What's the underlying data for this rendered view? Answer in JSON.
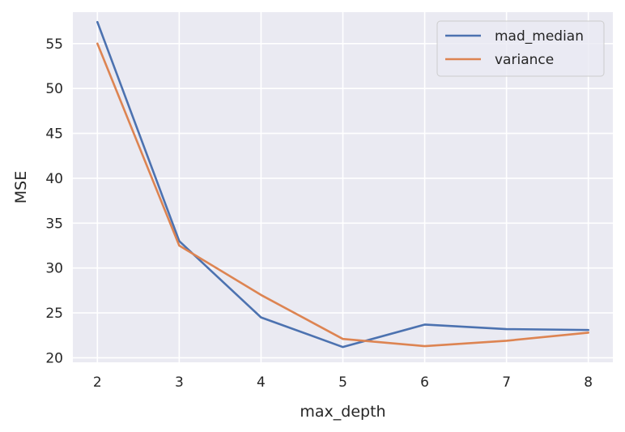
{
  "chart_data": {
    "type": "line",
    "xlabel": "max_depth",
    "ylabel": "MSE",
    "x": [
      2,
      3,
      4,
      5,
      6,
      7,
      8
    ],
    "xlim": [
      1.7,
      8.3
    ],
    "ylim": [
      19.5,
      58.5
    ],
    "xticks": [
      2,
      3,
      4,
      5,
      6,
      7,
      8
    ],
    "yticks": [
      20,
      25,
      30,
      35,
      40,
      45,
      50,
      55
    ],
    "grid": true,
    "legend_position": "top-right",
    "background_color": "#eaeaf2",
    "grid_color": "#ffffff",
    "series": [
      {
        "name": "mad_median",
        "color": "#4c72b0",
        "values": [
          57.4,
          33.0,
          24.5,
          21.2,
          23.7,
          23.2,
          23.1
        ]
      },
      {
        "name": "variance",
        "color": "#dd8452",
        "values": [
          55.0,
          32.5,
          27.0,
          22.1,
          21.3,
          21.9,
          22.8
        ]
      }
    ]
  }
}
